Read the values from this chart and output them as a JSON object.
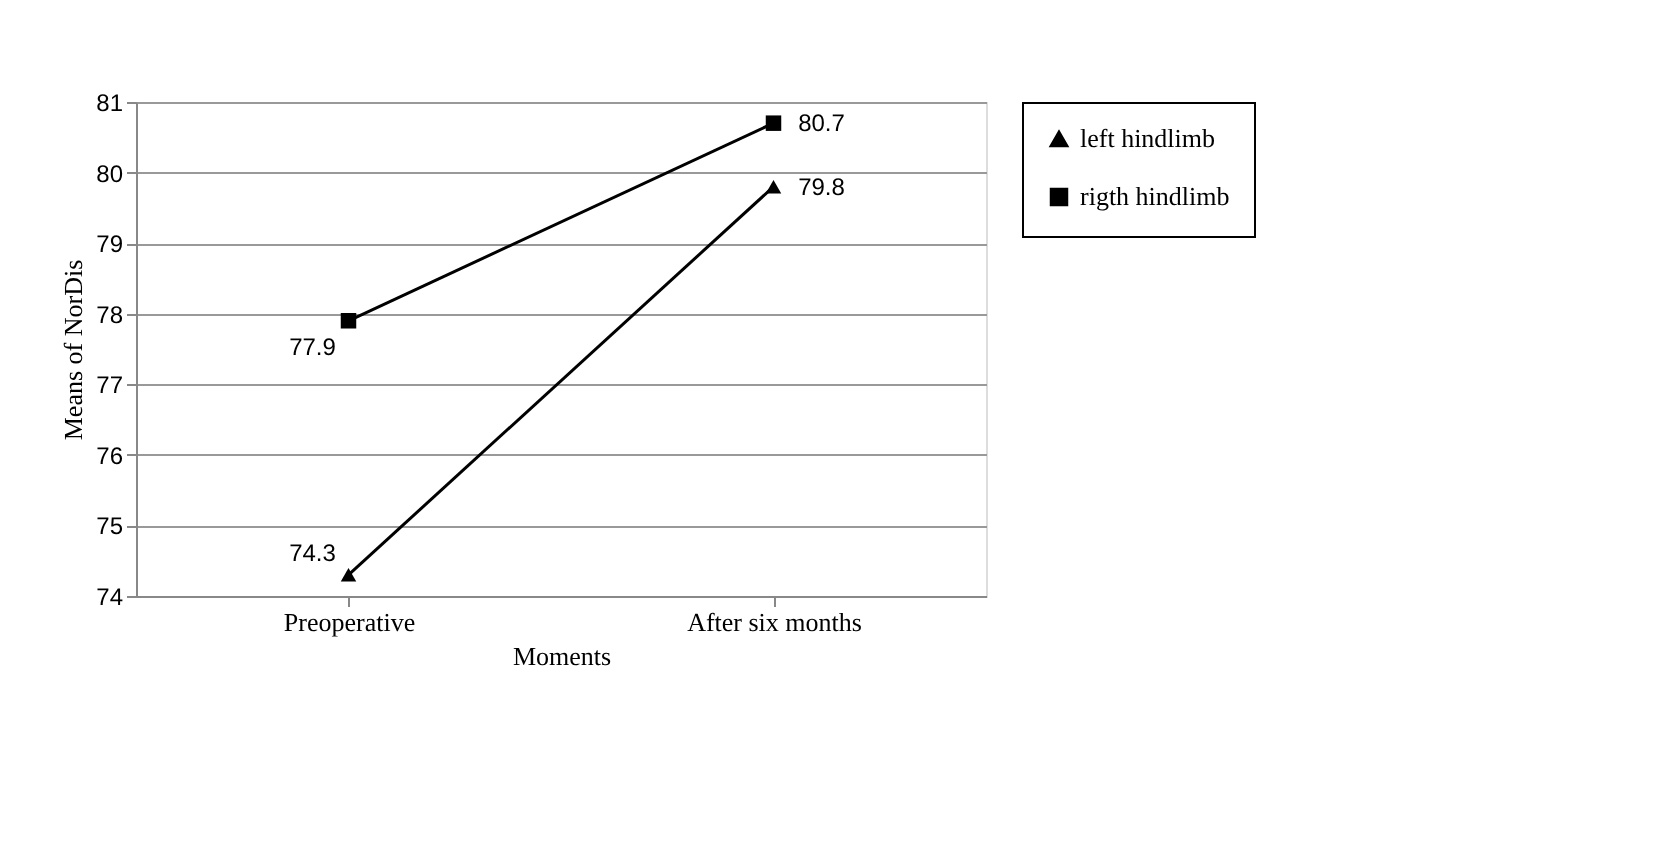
{
  "chart_data": {
    "type": "line",
    "xlabel": "Moments",
    "ylabel": "Means of NorDis",
    "categories": [
      "Preoperative",
      "After six months"
    ],
    "series": [
      {
        "name": "left hindlimb",
        "color": "#000000",
        "marker": "triangle",
        "values": [
          74.3,
          79.8
        ]
      },
      {
        "name": "rigth hindlimb",
        "color": "#000000",
        "marker": "square",
        "values": [
          77.9,
          80.7
        ]
      }
    ],
    "ylim": [
      74,
      81
    ],
    "yticks": [
      74,
      75,
      76,
      77,
      78,
      79,
      80,
      81
    ],
    "grid": "y",
    "legend": "right",
    "data_labels": true,
    "line_style": "solid"
  }
}
